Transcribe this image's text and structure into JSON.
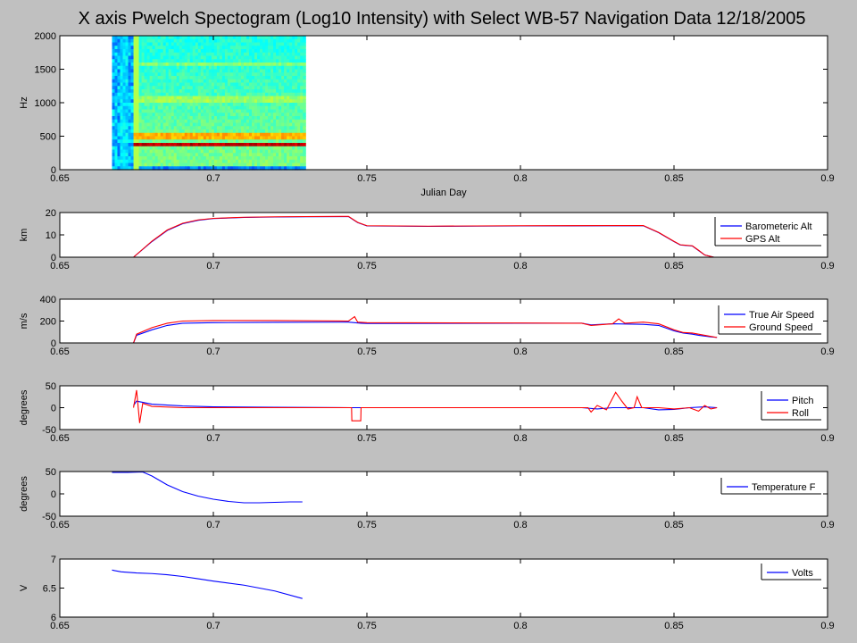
{
  "title": "X axis Pwelch Spectogram (Log10 Intensity) with Select WB-57 Navigation Data 12/18/2005",
  "colors": {
    "figure_bg": "#c0c0c0",
    "axes_bg": "#ffffff",
    "blue": "#0000ff",
    "red": "#ff0000"
  },
  "chart_data": [
    {
      "type": "heatmap",
      "xlabel": "Julian Day",
      "ylabel": "Hz",
      "xlim": [
        0.65,
        0.9
      ],
      "ylim": [
        0,
        2000
      ],
      "xticks": [
        "0.65",
        "0.7",
        "0.75",
        "0.8",
        "0.85",
        "0.9"
      ],
      "yticks": [
        "0",
        "500",
        "1000",
        "1500",
        "2000"
      ],
      "data_x_range": [
        0.667,
        0.73
      ],
      "dominant_band_hz": 380,
      "secondary_band_hz": 500,
      "colormap": "jet"
    },
    {
      "type": "line",
      "ylabel": "km",
      "xlim": [
        0.65,
        0.9
      ],
      "ylim": [
        0,
        20
      ],
      "xticks": [
        "0.65",
        "0.7",
        "0.75",
        "0.8",
        "0.85",
        "0.9"
      ],
      "yticks": [
        "0",
        "10",
        "20"
      ],
      "legend_position": "right",
      "series": [
        {
          "name": "Barometeric Alt",
          "color": "#0000ff",
          "points": [
            [
              0.674,
              0
            ],
            [
              0.68,
              7
            ],
            [
              0.685,
              12
            ],
            [
              0.69,
              15
            ],
            [
              0.695,
              16.5
            ],
            [
              0.7,
              17.3
            ],
            [
              0.71,
              17.8
            ],
            [
              0.72,
              18
            ],
            [
              0.73,
              18.1
            ],
            [
              0.744,
              18.2
            ],
            [
              0.747,
              15.5
            ],
            [
              0.75,
              14
            ],
            [
              0.77,
              13.8
            ],
            [
              0.8,
              14
            ],
            [
              0.84,
              14.1
            ],
            [
              0.845,
              11
            ],
            [
              0.85,
              7
            ],
            [
              0.852,
              5.5
            ],
            [
              0.856,
              5
            ],
            [
              0.858,
              3
            ],
            [
              0.86,
              1
            ],
            [
              0.863,
              0
            ]
          ]
        },
        {
          "name": "GPS Alt",
          "color": "#ff0000",
          "points": [
            [
              0.674,
              0
            ],
            [
              0.68,
              7.2
            ],
            [
              0.685,
              12.2
            ],
            [
              0.69,
              15.2
            ],
            [
              0.695,
              16.7
            ],
            [
              0.7,
              17.4
            ],
            [
              0.71,
              17.9
            ],
            [
              0.72,
              18.1
            ],
            [
              0.73,
              18.2
            ],
            [
              0.744,
              18.3
            ],
            [
              0.747,
              15.6
            ],
            [
              0.75,
              14.1
            ],
            [
              0.77,
              13.9
            ],
            [
              0.8,
              14.1
            ],
            [
              0.84,
              14.2
            ],
            [
              0.845,
              11.1
            ],
            [
              0.85,
              7.1
            ],
            [
              0.852,
              5.6
            ],
            [
              0.856,
              5.1
            ],
            [
              0.858,
              3.1
            ],
            [
              0.86,
              1
            ],
            [
              0.863,
              0
            ]
          ]
        }
      ]
    },
    {
      "type": "line",
      "ylabel": "m/s",
      "xlim": [
        0.65,
        0.9
      ],
      "ylim": [
        0,
        400
      ],
      "xticks": [
        "0.65",
        "0.7",
        "0.75",
        "0.8",
        "0.85",
        "0.9"
      ],
      "yticks": [
        "0",
        "200",
        "400"
      ],
      "legend_position": "right",
      "series": [
        {
          "name": "True Air Speed",
          "color": "#0000ff",
          "points": [
            [
              0.674,
              0
            ],
            [
              0.675,
              70
            ],
            [
              0.68,
              120
            ],
            [
              0.685,
              160
            ],
            [
              0.69,
              180
            ],
            [
              0.7,
              185
            ],
            [
              0.72,
              188
            ],
            [
              0.744,
              190
            ],
            [
              0.748,
              180
            ],
            [
              0.75,
              178
            ],
            [
              0.8,
              180
            ],
            [
              0.82,
              180
            ],
            [
              0.823,
              165
            ],
            [
              0.83,
              175
            ],
            [
              0.84,
              170
            ],
            [
              0.845,
              160
            ],
            [
              0.85,
              110
            ],
            [
              0.853,
              90
            ],
            [
              0.856,
              80
            ],
            [
              0.858,
              70
            ],
            [
              0.862,
              55
            ],
            [
              0.864,
              50
            ]
          ]
        },
        {
          "name": "Ground Speed",
          "color": "#ff0000",
          "points": [
            [
              0.674,
              0
            ],
            [
              0.675,
              80
            ],
            [
              0.68,
              140
            ],
            [
              0.685,
              180
            ],
            [
              0.69,
              200
            ],
            [
              0.7,
              205
            ],
            [
              0.72,
              205
            ],
            [
              0.744,
              200
            ],
            [
              0.746,
              240
            ],
            [
              0.747,
              190
            ],
            [
              0.75,
              185
            ],
            [
              0.8,
              182
            ],
            [
              0.82,
              180
            ],
            [
              0.823,
              160
            ],
            [
              0.83,
              175
            ],
            [
              0.832,
              220
            ],
            [
              0.834,
              180
            ],
            [
              0.84,
              190
            ],
            [
              0.845,
              175
            ],
            [
              0.85,
              120
            ],
            [
              0.853,
              95
            ],
            [
              0.856,
              90
            ],
            [
              0.858,
              80
            ],
            [
              0.862,
              60
            ],
            [
              0.864,
              50
            ]
          ]
        }
      ]
    },
    {
      "type": "line",
      "ylabel": "degrees",
      "xlim": [
        0.65,
        0.9
      ],
      "ylim": [
        -50,
        50
      ],
      "xticks": [
        "0.65",
        "0.7",
        "0.75",
        "0.8",
        "0.85",
        "0.9"
      ],
      "yticks": [
        "-50",
        "0",
        "50"
      ],
      "legend_position": "right",
      "series": [
        {
          "name": "Pitch",
          "color": "#0000ff",
          "points": [
            [
              0.674,
              5
            ],
            [
              0.675,
              15
            ],
            [
              0.68,
              8
            ],
            [
              0.69,
              4
            ],
            [
              0.7,
              2
            ],
            [
              0.72,
              1
            ],
            [
              0.745,
              0
            ],
            [
              0.75,
              0
            ],
            [
              0.8,
              0
            ],
            [
              0.82,
              0
            ],
            [
              0.825,
              -3
            ],
            [
              0.83,
              0
            ],
            [
              0.84,
              0
            ],
            [
              0.845,
              -5
            ],
            [
              0.85,
              -4
            ],
            [
              0.855,
              0
            ],
            [
              0.86,
              2
            ],
            [
              0.864,
              0
            ]
          ]
        },
        {
          "name": "Roll",
          "color": "#ff0000",
          "points": [
            [
              0.674,
              0
            ],
            [
              0.675,
              40
            ],
            [
              0.676,
              -35
            ],
            [
              0.677,
              10
            ],
            [
              0.68,
              3
            ],
            [
              0.69,
              0
            ],
            [
              0.745,
              0
            ],
            [
              0.7451,
              -30
            ],
            [
              0.748,
              -30
            ],
            [
              0.7481,
              0
            ],
            [
              0.8,
              0
            ],
            [
              0.822,
              0
            ],
            [
              0.823,
              -10
            ],
            [
              0.825,
              5
            ],
            [
              0.828,
              -5
            ],
            [
              0.831,
              35
            ],
            [
              0.833,
              15
            ],
            [
              0.835,
              -3
            ],
            [
              0.837,
              0
            ],
            [
              0.838,
              25
            ],
            [
              0.8395,
              0
            ],
            [
              0.845,
              0
            ],
            [
              0.85,
              -3
            ],
            [
              0.855,
              0
            ],
            [
              0.858,
              -8
            ],
            [
              0.86,
              5
            ],
            [
              0.862,
              -3
            ],
            [
              0.864,
              0
            ]
          ]
        }
      ]
    },
    {
      "type": "line",
      "ylabel": "degrees",
      "xlim": [
        0.65,
        0.9
      ],
      "ylim": [
        -50,
        50
      ],
      "xticks": [
        "0.65",
        "0.7",
        "0.75",
        "0.8",
        "0.85",
        "0.9"
      ],
      "yticks": [
        "-50",
        "0",
        "50"
      ],
      "legend_position": "right",
      "series": [
        {
          "name": "Temperature F",
          "color": "#0000ff",
          "points": [
            [
              0.667,
              48
            ],
            [
              0.672,
              48
            ],
            [
              0.677,
              49
            ],
            [
              0.68,
              40
            ],
            [
              0.685,
              20
            ],
            [
              0.69,
              5
            ],
            [
              0.695,
              -5
            ],
            [
              0.7,
              -12
            ],
            [
              0.705,
              -17
            ],
            [
              0.71,
              -20
            ],
            [
              0.715,
              -20
            ],
            [
              0.72,
              -19
            ],
            [
              0.725,
              -18
            ],
            [
              0.729,
              -18
            ]
          ]
        }
      ]
    },
    {
      "type": "line",
      "ylabel": "V",
      "xlim": [
        0.65,
        0.9
      ],
      "ylim": [
        6,
        7
      ],
      "xticks": [
        "0.65",
        "0.7",
        "0.75",
        "0.8",
        "0.85",
        "0.9"
      ],
      "yticks": [
        "6",
        "6.5",
        "7"
      ],
      "legend_position": "right",
      "series": [
        {
          "name": "Volts",
          "color": "#0000ff",
          "points": [
            [
              0.667,
              6.81
            ],
            [
              0.67,
              6.78
            ],
            [
              0.675,
              6.76
            ],
            [
              0.68,
              6.75
            ],
            [
              0.685,
              6.73
            ],
            [
              0.69,
              6.7
            ],
            [
              0.695,
              6.66
            ],
            [
              0.7,
              6.62
            ],
            [
              0.71,
              6.55
            ],
            [
              0.72,
              6.45
            ],
            [
              0.729,
              6.32
            ]
          ]
        }
      ]
    }
  ]
}
